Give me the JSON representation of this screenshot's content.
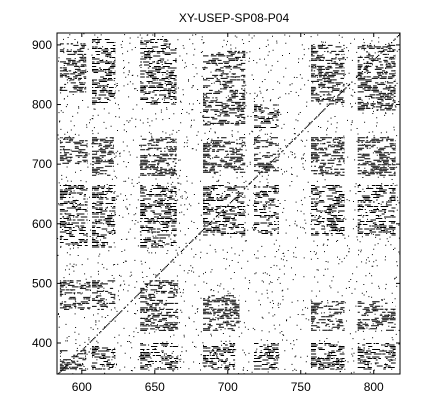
{
  "chart_data": {
    "type": "recurrence-plot",
    "title": "XY-USEP-SP08-P04",
    "xlabel": "",
    "ylabel": "",
    "xlim": [
      583,
      818
    ],
    "ylim": [
      348,
      920
    ],
    "x_ticks": [
      600,
      650,
      700,
      750,
      800
    ],
    "y_ticks": [
      400,
      500,
      600,
      700,
      800,
      900
    ],
    "x_tick_labels": [
      "600",
      "650",
      "700",
      "750",
      "800"
    ],
    "y_tick_labels": [
      "400",
      "500",
      "600",
      "700",
      "800",
      "900"
    ],
    "grid": false,
    "legend": "none",
    "colors": {
      "mark": "#000000",
      "background": "#ffffff",
      "frame": "#000000"
    },
    "recurrence_blocks": [
      {
        "x": [
          585,
          603
        ],
        "y": [
          355,
          388
        ]
      },
      {
        "x": [
          585,
          606
        ],
        "y": [
          455,
          505
        ]
      },
      {
        "x": [
          585,
          604
        ],
        "y": [
          560,
          665
        ]
      },
      {
        "x": [
          585,
          604
        ],
        "y": [
          700,
          745
        ]
      },
      {
        "x": [
          585,
          603
        ],
        "y": [
          820,
          905
        ]
      },
      {
        "x": [
          607,
          623
        ],
        "y": [
          355,
          395
        ]
      },
      {
        "x": [
          607,
          623
        ],
        "y": [
          455,
          505
        ]
      },
      {
        "x": [
          607,
          623
        ],
        "y": [
          560,
          665
        ]
      },
      {
        "x": [
          607,
          622
        ],
        "y": [
          680,
          745
        ]
      },
      {
        "x": [
          607,
          623
        ],
        "y": [
          800,
          910
        ]
      },
      {
        "x": [
          640,
          666
        ],
        "y": [
          355,
          400
        ]
      },
      {
        "x": [
          640,
          666
        ],
        "y": [
          420,
          505
        ]
      },
      {
        "x": [
          640,
          665
        ],
        "y": [
          560,
          665
        ]
      },
      {
        "x": [
          640,
          665
        ],
        "y": [
          680,
          745
        ]
      },
      {
        "x": [
          640,
          665
        ],
        "y": [
          800,
          910
        ]
      },
      {
        "x": [
          683,
          705
        ],
        "y": [
          355,
          400
        ]
      },
      {
        "x": [
          683,
          708
        ],
        "y": [
          420,
          480
        ]
      },
      {
        "x": [
          683,
          712
        ],
        "y": [
          580,
          665
        ]
      },
      {
        "x": [
          683,
          712
        ],
        "y": [
          685,
          745
        ]
      },
      {
        "x": [
          683,
          712
        ],
        "y": [
          765,
          890
        ]
      },
      {
        "x": [
          718,
          735
        ],
        "y": [
          355,
          400
        ]
      },
      {
        "x": [
          718,
          735
        ],
        "y": [
          580,
          665
        ]
      },
      {
        "x": [
          718,
          735
        ],
        "y": [
          685,
          745
        ]
      },
      {
        "x": [
          718,
          735
        ],
        "y": [
          760,
          800
        ]
      },
      {
        "x": [
          757,
          780
        ],
        "y": [
          355,
          400
        ]
      },
      {
        "x": [
          757,
          780
        ],
        "y": [
          420,
          470
        ]
      },
      {
        "x": [
          757,
          780
        ],
        "y": [
          580,
          665
        ]
      },
      {
        "x": [
          757,
          780
        ],
        "y": [
          680,
          745
        ]
      },
      {
        "x": [
          757,
          780
        ],
        "y": [
          800,
          900
        ]
      },
      {
        "x": [
          789,
          815
        ],
        "y": [
          355,
          400
        ]
      },
      {
        "x": [
          789,
          815
        ],
        "y": [
          420,
          470
        ]
      },
      {
        "x": [
          789,
          815
        ],
        "y": [
          580,
          665
        ]
      },
      {
        "x": [
          789,
          815
        ],
        "y": [
          680,
          745
        ]
      },
      {
        "x": [
          789,
          815
        ],
        "y": [
          790,
          900
        ]
      }
    ],
    "sparse_band": {
      "x": [
        583,
        818
      ],
      "y": [
        505,
        560
      ]
    }
  }
}
